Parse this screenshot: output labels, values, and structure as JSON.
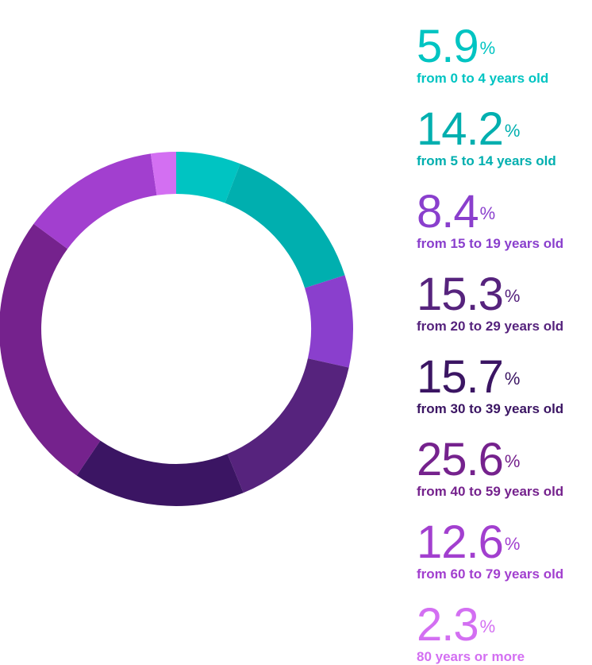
{
  "chart_data": {
    "type": "pie",
    "variant": "donut",
    "start_angle_deg": 0,
    "direction": "clockwise",
    "unit_suffix": "%",
    "categories": [
      "from 0 to 4 years old",
      "from 5 to 14 years old",
      "from 15 to 19 years old",
      "from 20 to 29 years old",
      "from 30 to 39 years old",
      "from 40 to 59 years old",
      "from 60 to 79 years old",
      "80 years or more"
    ],
    "values": [
      5.9,
      14.2,
      8.4,
      15.3,
      15.7,
      25.6,
      12.6,
      2.3
    ],
    "value_labels": [
      "5.9",
      "14.2",
      "8.4",
      "15.3",
      "15.7",
      "25.6",
      "12.6",
      "2.3"
    ],
    "colors": [
      "#00c4c2",
      "#00afaf",
      "#8a3fcd",
      "#56237d",
      "#3b1563",
      "#75228d",
      "#a23fcf",
      "#d36ff2"
    ],
    "legend_position": "right"
  }
}
